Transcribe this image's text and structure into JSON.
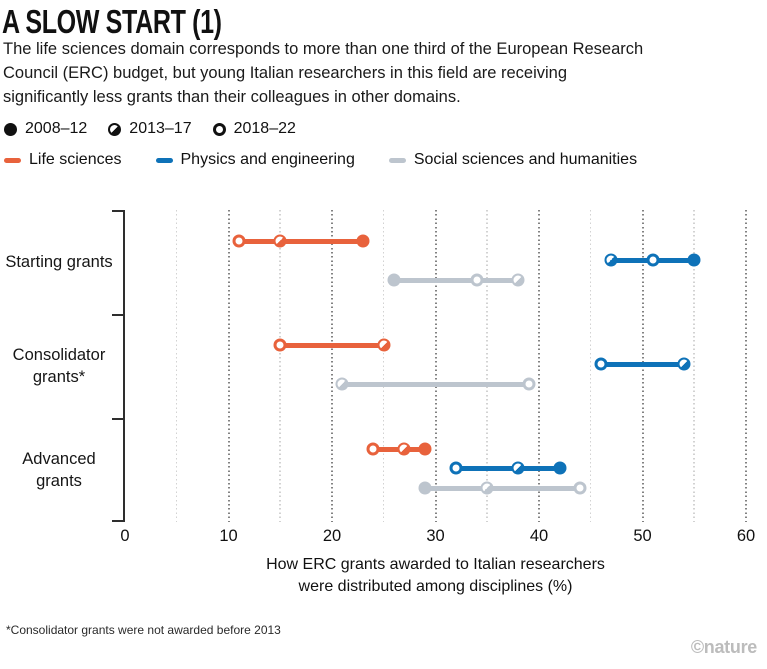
{
  "header": {
    "title": "A SLOW START (1)",
    "subtitle_lines": [
      "The life sciences domain corresponds to more than one third of the European Research",
      "Council (ERC) budget, but young Italian researchers in this field are receiving",
      "significantly less grants than their colleagues in other domains."
    ]
  },
  "credit": "©nature",
  "chart_data": {
    "type": "dumbbell-dot",
    "title": "A SLOW START (1)",
    "xlabel_lines": [
      "How ERC grants awarded to Italian researchers",
      "were distributed among disciplines (%)"
    ],
    "xlim": [
      0,
      60
    ],
    "xticks": [
      0,
      10,
      20,
      30,
      40,
      50,
      60
    ],
    "minor_step": 5,
    "grid": "vertical-dotted",
    "legend_position": "top",
    "footnote": "*Consolidator grants were not awarded before 2013",
    "periods": [
      {
        "id": "2008-12",
        "label": "2008–12",
        "marker": "filled"
      },
      {
        "id": "2013-17",
        "label": "2013–17",
        "marker": "half"
      },
      {
        "id": "2018-22",
        "label": "2018–22",
        "marker": "open"
      }
    ],
    "series": [
      {
        "name": "Life sciences",
        "color": "#E8623C"
      },
      {
        "name": "Physics and engineering",
        "color": "#0E72B8"
      },
      {
        "name": "Social sciences and humanities",
        "color": "#BDC5CE"
      }
    ],
    "groups": [
      {
        "label": "Starting grants",
        "rows": [
          {
            "series": 0,
            "points": [
              {
                "period": "2018-22",
                "value": 11
              },
              {
                "period": "2013-17",
                "value": 15
              },
              {
                "period": "2008-12",
                "value": 23
              }
            ]
          },
          {
            "series": 1,
            "points": [
              {
                "period": "2013-17",
                "value": 47
              },
              {
                "period": "2018-22",
                "value": 51
              },
              {
                "period": "2008-12",
                "value": 55
              }
            ]
          },
          {
            "series": 2,
            "points": [
              {
                "period": "2008-12",
                "value": 26
              },
              {
                "period": "2018-22",
                "value": 34
              },
              {
                "period": "2013-17",
                "value": 38
              }
            ]
          }
        ]
      },
      {
        "label": "Consolidator grants*",
        "rows": [
          {
            "series": 0,
            "points": [
              {
                "period": "2018-22",
                "value": 15
              },
              {
                "period": "2013-17",
                "value": 25
              }
            ]
          },
          {
            "series": 1,
            "points": [
              {
                "period": "2018-22",
                "value": 46
              },
              {
                "period": "2013-17",
                "value": 54
              }
            ]
          },
          {
            "series": 2,
            "points": [
              {
                "period": "2013-17",
                "value": 21
              },
              {
                "period": "2018-22",
                "value": 39
              }
            ]
          }
        ]
      },
      {
        "label": "Advanced grants",
        "rows": [
          {
            "series": 0,
            "points": [
              {
                "period": "2018-22",
                "value": 24
              },
              {
                "period": "2013-17",
                "value": 27
              },
              {
                "period": "2008-12",
                "value": 29
              }
            ]
          },
          {
            "series": 1,
            "points": [
              {
                "period": "2018-22",
                "value": 32
              },
              {
                "period": "2013-17",
                "value": 38
              },
              {
                "period": "2008-12",
                "value": 42
              }
            ]
          },
          {
            "series": 2,
            "points": [
              {
                "period": "2008-12",
                "value": 29
              },
              {
                "period": "2013-17",
                "value": 35
              },
              {
                "period": "2018-22",
                "value": 44
              }
            ]
          }
        ]
      }
    ]
  }
}
